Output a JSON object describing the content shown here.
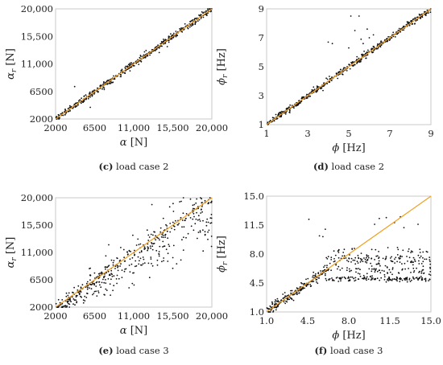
{
  "accent_colors": {
    "fit_line": "#f0a020",
    "points": "#111111",
    "frame": "#c8c8c8"
  },
  "chart_data": [
    {
      "type": "scatter",
      "panel": "c",
      "caption": "load case 2",
      "xlabel_sym": "α",
      "xlabel_unit": "[N]",
      "ylabel_sym": "α",
      "ylabel_sub": "r",
      "ylabel_unit": "[N]",
      "xlim": [
        2000,
        20000
      ],
      "ylim": [
        2000,
        20000
      ],
      "xticks": [
        2000,
        6500,
        11000,
        15500,
        20000
      ],
      "xtick_labels": [
        "2000",
        "6500",
        "11,000",
        "15,500",
        "20,000"
      ],
      "yticks": [
        2000,
        6500,
        11000,
        15500,
        20000
      ],
      "ytick_labels": [
        "2000",
        "6500",
        "11,000",
        "15,500",
        "20,000"
      ],
      "grid": false,
      "reference_line": {
        "x": [
          2000,
          20000
        ],
        "y": [
          2000,
          20000
        ]
      },
      "scatter": {
        "count": 520,
        "relation": "y ≈ x",
        "noise_sd": 260,
        "outliers": [
          [
            4200,
            7300
          ],
          [
            6000,
            3900
          ]
        ]
      }
    },
    {
      "type": "scatter",
      "panel": "d",
      "caption": "load case 2",
      "xlabel_sym": "ϕ",
      "xlabel_unit": "[Hz]",
      "ylabel_sym": "ϕ",
      "ylabel_sub": "r",
      "ylabel_unit": "[Hz]",
      "xlim": [
        1,
        9
      ],
      "ylim": [
        1,
        9
      ],
      "xticks": [
        1,
        3,
        5,
        7,
        9
      ],
      "xtick_labels": [
        "1",
        "3",
        "5",
        "7",
        "9"
      ],
      "yticks": [
        1,
        3,
        5,
        7,
        9
      ],
      "ytick_labels": [
        "1",
        "3",
        "5",
        "7",
        "9"
      ],
      "grid": false,
      "reference_line": {
        "x": [
          1,
          9
        ],
        "y": [
          1,
          9
        ]
      },
      "scatter": {
        "count": 520,
        "relation": "y ≈ x",
        "noise_sd": 0.1,
        "outliers": [
          [
            4.0,
            6.7
          ],
          [
            4.2,
            6.6
          ],
          [
            5.1,
            8.5
          ],
          [
            5.5,
            8.5
          ],
          [
            5.3,
            7.5
          ],
          [
            5.6,
            6.9
          ],
          [
            6.0,
            7.0
          ],
          [
            5.9,
            7.6
          ],
          [
            6.2,
            7.2
          ],
          [
            4.4,
            4.5
          ],
          [
            4.6,
            4.8
          ],
          [
            5.0,
            6.3
          ],
          [
            5.7,
            6.6
          ]
        ]
      }
    },
    {
      "type": "scatter",
      "panel": "e",
      "caption": "load case 3",
      "xlabel_sym": "α",
      "xlabel_unit": "[N]",
      "ylabel_sym": "α",
      "ylabel_sub": "r",
      "ylabel_unit": "[N]",
      "xlim": [
        2000,
        20000
      ],
      "ylim": [
        2000,
        20000
      ],
      "xticks": [
        2000,
        6500,
        11000,
        15500,
        20000
      ],
      "xtick_labels": [
        "2000",
        "6500",
        "11,000",
        "15,500",
        "20,000"
      ],
      "yticks": [
        2000,
        6500,
        11000,
        15500,
        20000
      ],
      "ytick_labels": [
        "2000",
        "6500",
        "11,000",
        "15,500",
        "20,000"
      ],
      "grid": false,
      "reference_line": {
        "x": [
          2000,
          20000
        ],
        "y": [
          2000,
          20000
        ]
      },
      "scatter": {
        "count": 460,
        "relation": "y widely dispersed around x, mostly below",
        "noise_sd": 2800
      }
    },
    {
      "type": "scatter",
      "panel": "f",
      "caption": "load case 3",
      "xlabel_sym": "ϕ",
      "xlabel_unit": "[Hz]",
      "ylabel_sym": "ϕ",
      "ylabel_sub": "r",
      "ylabel_unit": "[Hz]",
      "xlim": [
        1,
        15
      ],
      "ylim": [
        1,
        15
      ],
      "xticks": [
        1.0,
        4.5,
        8.0,
        11.5,
        15.0
      ],
      "xtick_labels": [
        "1.0",
        "4.5",
        "8.0",
        "11.5",
        "15.0"
      ],
      "yticks": [
        1.0,
        4.5,
        8.0,
        11.5,
        15.0
      ],
      "ytick_labels": [
        "1.0",
        "4.5",
        "8.0",
        "11.5",
        "15.0"
      ],
      "grid": false,
      "reference_line": {
        "x": [
          1,
          15
        ],
        "y": [
          1,
          15
        ]
      },
      "scatter": {
        "count": 560,
        "relation": "y ≈ x up to 6 Hz, then bands at 5.0–7.5 Hz",
        "noise_sd": 0.25,
        "outliers": [
          [
            4.6,
            12.2
          ],
          [
            5.5,
            10.2
          ],
          [
            5.8,
            10.1
          ],
          [
            6.0,
            11.0
          ],
          [
            10.6,
            12.3
          ],
          [
            11.2,
            12.4
          ],
          [
            11.9,
            11.8
          ],
          [
            12.4,
            12.5
          ],
          [
            12.7,
            11.2
          ],
          [
            13.9,
            11.6
          ],
          [
            10.2,
            11.6
          ]
        ]
      }
    }
  ]
}
